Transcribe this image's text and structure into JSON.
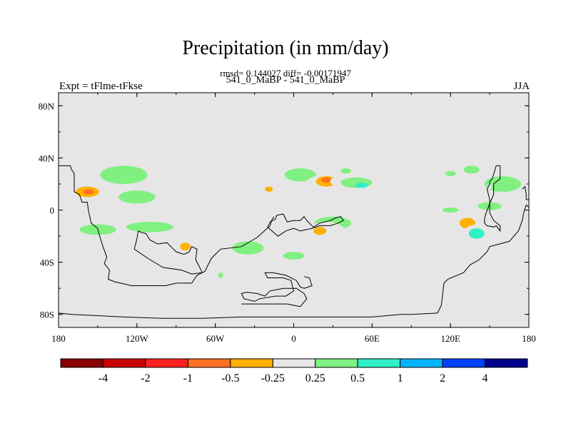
{
  "chart_data": {
    "type": "heatmap",
    "title": "Precipitation (in mm/day)",
    "stats_line": "rmsd= 0.144027 diff= -0.00171947",
    "run_line": "541_0_MaBP - 541_0_MaBP",
    "left_label": "Expt = tFlme-tFkse",
    "right_label": "JJA",
    "projection": "cylindrical equidistant",
    "xlim": [
      -180,
      180
    ],
    "ylim": [
      -90,
      90
    ],
    "x_ticks": [
      {
        "value": -180,
        "label": "180"
      },
      {
        "value": -120,
        "label": "120W"
      },
      {
        "value": -60,
        "label": "60W"
      },
      {
        "value": 0,
        "label": "0"
      },
      {
        "value": 60,
        "label": "60E"
      },
      {
        "value": 120,
        "label": "120E"
      },
      {
        "value": 180,
        "label": "180"
      }
    ],
    "y_ticks": [
      {
        "value": 80,
        "label": "80N"
      },
      {
        "value": 40,
        "label": "40N"
      },
      {
        "value": 0,
        "label": "0"
      },
      {
        "value": -40,
        "label": "40S"
      },
      {
        "value": -80,
        "label": "80S"
      }
    ],
    "colorbar": {
      "colors": [
        "#8b0000",
        "#c80000",
        "#ff2020",
        "#ff7020",
        "#ffb000",
        "#e6e6e6",
        "#80f080",
        "#30f0c8",
        "#00b4ff",
        "#0040ff",
        "#00008b"
      ],
      "labels": [
        "-4",
        "-2",
        "-1",
        "-0.5",
        "-0.25",
        "0.25",
        "0.5",
        "1",
        "2",
        "4"
      ]
    },
    "anomalies": [
      {
        "lon": 136,
        "lat": 31,
        "rx": 6,
        "ry": 3,
        "level": 0.5
      },
      {
        "lon": 173,
        "lat": 35,
        "rx": 9,
        "ry": 4,
        "level": -0.25
      },
      {
        "lon": 160,
        "lat": 20,
        "rx": 14,
        "ry": 6,
        "level": 0.5
      },
      {
        "lon": 200,
        "lat": 15,
        "rx": 22,
        "ry": 8,
        "level": -0.25
      },
      {
        "lon": 202,
        "lat": 14,
        "rx": 9,
        "ry": 4,
        "level": -0.5
      },
      {
        "lon": 203,
        "lat": 14,
        "rx": 4,
        "ry": 2,
        "level": -1
      },
      {
        "lon": 170,
        "lat": 12,
        "rx": 6,
        "ry": 3,
        "level": -0.25
      },
      {
        "lon": 230,
        "lat": 27,
        "rx": 18,
        "ry": 7,
        "level": 0.5
      },
      {
        "lon": 240,
        "lat": 10,
        "rx": 14,
        "ry": 5,
        "level": 0.5
      },
      {
        "lon": 188,
        "lat": 1,
        "rx": 14,
        "ry": 4,
        "level": -0.25
      },
      {
        "lon": 150,
        "lat": 3,
        "rx": 9,
        "ry": 3,
        "level": 0.5
      },
      {
        "lon": 136,
        "lat": -4,
        "rx": 5,
        "ry": 3,
        "level": -0.25
      },
      {
        "lon": 133,
        "lat": -10,
        "rx": 6,
        "ry": 4,
        "level": -0.5
      },
      {
        "lon": 140,
        "lat": -18,
        "rx": 10,
        "ry": 7,
        "level": -0.25
      },
      {
        "lon": 140,
        "lat": -18,
        "rx": 6,
        "ry": 4,
        "level": 1
      },
      {
        "lon": 210,
        "lat": -15,
        "rx": 14,
        "ry": 4,
        "level": 0.5
      },
      {
        "lon": 250,
        "lat": -13,
        "rx": 18,
        "ry": 4,
        "level": 0.5
      },
      {
        "lon": 278,
        "lat": -28,
        "rx": 10,
        "ry": 6,
        "level": -0.25
      },
      {
        "lon": 277,
        "lat": -28,
        "rx": 4,
        "ry": 3,
        "level": -0.5
      },
      {
        "lon": 295,
        "lat": -36,
        "rx": 9,
        "ry": 4,
        "level": -0.25
      },
      {
        "lon": 325,
        "lat": -29,
        "rx": 12,
        "ry": 5,
        "level": 0.5
      },
      {
        "lon": 320,
        "lat": 20,
        "rx": 12,
        "ry": 4,
        "level": -0.25
      },
      {
        "lon": 341,
        "lat": 17,
        "rx": 8,
        "ry": 3,
        "level": -0.25
      },
      {
        "lon": 341,
        "lat": 16,
        "rx": 3,
        "ry": 2,
        "level": -0.5
      },
      {
        "lon": 5,
        "lat": 27,
        "rx": 12,
        "ry": 5,
        "level": 0.5
      },
      {
        "lon": 25,
        "lat": 20,
        "rx": 16,
        "ry": 7,
        "level": -0.25
      },
      {
        "lon": 25,
        "lat": 22,
        "rx": 8,
        "ry": 4,
        "level": -0.5
      },
      {
        "lon": 25,
        "lat": 23,
        "rx": 4,
        "ry": 2,
        "level": -1
      },
      {
        "lon": 50,
        "lat": 22,
        "rx": 22,
        "ry": 7,
        "level": -0.25
      },
      {
        "lon": 48,
        "lat": 21,
        "rx": 12,
        "ry": 4,
        "level": 0.5
      },
      {
        "lon": 52,
        "lat": 19,
        "rx": 5,
        "ry": 2,
        "level": 1
      },
      {
        "lon": 30,
        "lat": -10,
        "rx": 14,
        "ry": 5,
        "level": 0.5
      },
      {
        "lon": 25,
        "lat": -16,
        "rx": 14,
        "ry": 7,
        "level": -0.25
      },
      {
        "lon": 20,
        "lat": -16,
        "rx": 5,
        "ry": 3,
        "level": -0.5
      },
      {
        "lon": 55,
        "lat": -25,
        "rx": 10,
        "ry": 6,
        "level": -0.25
      },
      {
        "lon": 0,
        "lat": -35,
        "rx": 8,
        "ry": 3,
        "level": 0.5
      },
      {
        "lon": 40,
        "lat": 30,
        "rx": 4,
        "ry": 2,
        "level": 0.5
      },
      {
        "lon": 120,
        "lat": 28,
        "rx": 4,
        "ry": 2,
        "level": 0.5
      },
      {
        "lon": 120,
        "lat": 0,
        "rx": 6,
        "ry": 2,
        "level": 0.5
      },
      {
        "lon": 150,
        "lat": 18,
        "rx": 2,
        "ry": 2,
        "level": -0.25
      },
      {
        "lon": 2,
        "lat": -56,
        "rx": 3,
        "ry": 2,
        "level": -0.25
      },
      {
        "lon": 222,
        "lat": -57,
        "rx": 3,
        "ry": 3,
        "level": -0.25
      },
      {
        "lon": 304,
        "lat": -50,
        "rx": 2,
        "ry": 2,
        "level": 0.5
      }
    ],
    "coastlines": [
      [
        [
          -180,
          34
        ],
        [
          -171,
          34
        ],
        [
          -170,
          31
        ],
        [
          -168,
          28
        ],
        [
          -168,
          14
        ],
        [
          -164,
          12
        ],
        [
          -162,
          6
        ],
        [
          -158,
          6
        ],
        [
          -157,
          -1
        ],
        [
          -155,
          -10
        ],
        [
          -150,
          -14
        ],
        [
          -149,
          -18
        ],
        [
          -146,
          -28
        ],
        [
          -143,
          -36
        ],
        [
          -145,
          -41
        ],
        [
          -141,
          -46
        ],
        [
          -142,
          -53
        ],
        [
          -137,
          -55
        ],
        [
          -124,
          -58
        ],
        [
          -112,
          -58
        ],
        [
          -98,
          -58
        ],
        [
          -90,
          -56
        ],
        [
          -78,
          -56
        ],
        [
          -74,
          -50
        ],
        [
          -68,
          -47
        ],
        [
          -63,
          -37
        ],
        [
          -56,
          -30
        ],
        [
          -40,
          -28
        ],
        [
          -28,
          -21
        ],
        [
          -18,
          -12
        ],
        [
          -17,
          -8
        ],
        [
          -15,
          -5
        ]
      ],
      [
        [
          -119,
          -16
        ],
        [
          -117,
          -17
        ],
        [
          -113,
          -18
        ],
        [
          -110,
          -23
        ],
        [
          -104,
          -26
        ],
        [
          -97,
          -25
        ],
        [
          -92,
          -30
        ],
        [
          -90,
          -32
        ],
        [
          -84,
          -34
        ],
        [
          -80,
          -32
        ],
        [
          -78,
          -28
        ],
        [
          -74,
          -30
        ],
        [
          -75,
          -38
        ],
        [
          -70,
          -48
        ],
        [
          -78,
          -49
        ],
        [
          -86,
          -46
        ],
        [
          -100,
          -44
        ],
        [
          -110,
          -38
        ],
        [
          -122,
          -30
        ],
        [
          -120,
          -22
        ],
        [
          -119,
          -16
        ]
      ],
      [
        [
          -180,
          -79
        ],
        [
          -170,
          -80
        ],
        [
          -130,
          -82
        ],
        [
          -100,
          -83
        ],
        [
          -70,
          -83
        ],
        [
          -40,
          -82
        ],
        [
          -10,
          -82
        ],
        [
          30,
          -82
        ],
        [
          60,
          -82
        ],
        [
          82,
          -80
        ],
        [
          90,
          -80
        ],
        [
          110,
          -79
        ],
        [
          113,
          -73
        ],
        [
          115,
          -56
        ],
        [
          118,
          -53
        ],
        [
          130,
          -48
        ],
        [
          135,
          -42
        ],
        [
          142,
          -38
        ],
        [
          148,
          -32
        ],
        [
          150,
          -28
        ],
        [
          165,
          -24
        ],
        [
          172,
          -16
        ],
        [
          175,
          -8
        ],
        [
          176,
          -2
        ],
        [
          178,
          4
        ],
        [
          180,
          2
        ]
      ],
      [
        [
          -20,
          -13
        ],
        [
          -18,
          -9
        ],
        [
          -14,
          -7
        ],
        [
          -13,
          -4
        ],
        [
          -8,
          -3
        ],
        [
          -5,
          -9
        ],
        [
          0,
          -8
        ],
        [
          5,
          -8
        ],
        [
          8,
          -5
        ],
        [
          10,
          -8
        ],
        [
          15,
          -13
        ],
        [
          20,
          -10
        ],
        [
          28,
          -8
        ],
        [
          32,
          -6
        ],
        [
          36,
          -5
        ],
        [
          38,
          -8
        ],
        [
          34,
          -10
        ],
        [
          28,
          -12
        ],
        [
          20,
          -12
        ],
        [
          14,
          -14
        ],
        [
          5,
          -16
        ],
        [
          0,
          -14
        ],
        [
          -6,
          -16
        ],
        [
          -12,
          -20
        ],
        [
          -20,
          -13
        ]
      ],
      [
        [
          -40,
          -72
        ],
        [
          -35,
          -72
        ],
        [
          -20,
          -72
        ],
        [
          -5,
          -72
        ],
        [
          5,
          -74
        ],
        [
          10,
          -68
        ],
        [
          8,
          -64
        ],
        [
          2,
          -60
        ],
        [
          -8,
          -60
        ],
        [
          -18,
          -62
        ],
        [
          -22,
          -66
        ],
        [
          -28,
          -64
        ],
        [
          -36,
          -63
        ],
        [
          -40,
          -64
        ],
        [
          -38,
          -68
        ],
        [
          -30,
          -70
        ],
        [
          -26,
          -68
        ],
        [
          -14,
          -66
        ],
        [
          -6,
          -66
        ],
        [
          0,
          -62
        ],
        [
          -2,
          -54
        ],
        [
          -8,
          -52
        ],
        [
          -18,
          -52
        ],
        [
          -20,
          -52
        ],
        [
          -22,
          -48
        ],
        [
          -16,
          -48
        ],
        [
          -6,
          -50
        ],
        [
          2,
          -54
        ],
        [
          5,
          -59
        ],
        [
          8,
          -60
        ],
        [
          14,
          -58
        ],
        [
          12,
          -52
        ],
        [
          8,
          -51
        ]
      ],
      [
        [
          147,
          -3
        ],
        [
          146,
          -7
        ],
        [
          146,
          -10
        ],
        [
          148,
          -12
        ],
        [
          153,
          -13
        ],
        [
          155,
          -12
        ],
        [
          158,
          -16
        ],
        [
          158,
          -12
        ],
        [
          153,
          -8
        ],
        [
          150,
          -2
        ],
        [
          150,
          8
        ],
        [
          148,
          16
        ],
        [
          150,
          20
        ],
        [
          150,
          22
        ],
        [
          152,
          24
        ],
        [
          155,
          34
        ],
        [
          158,
          34
        ],
        [
          158,
          24
        ],
        [
          153,
          20
        ],
        [
          153,
          12
        ],
        [
          150,
          5
        ],
        [
          147,
          -3
        ]
      ],
      [
        [
          175,
          16
        ],
        [
          177,
          18
        ],
        [
          178,
          12
        ],
        [
          178,
          8
        ],
        [
          180,
          8
        ]
      ]
    ]
  }
}
